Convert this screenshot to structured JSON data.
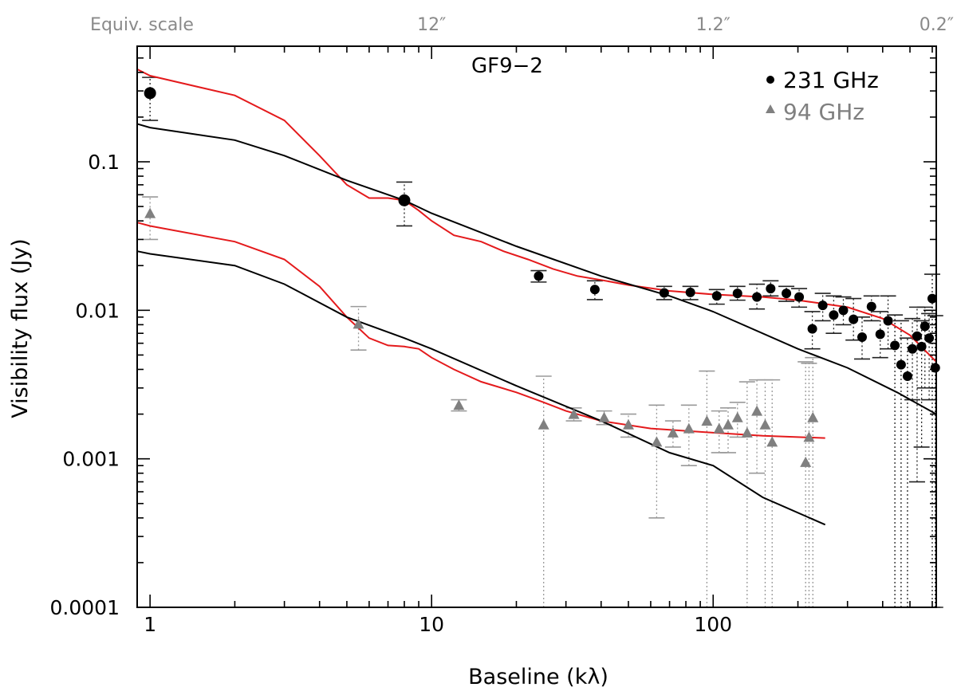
{
  "chart_data": {
    "type": "scatter",
    "title": "GF9−2",
    "xlabel": "Baseline (kλ)",
    "ylabel": "Visibility flux (Jy)",
    "x_scale": "log",
    "y_scale": "log",
    "xlim": [
      0.9,
      620
    ],
    "ylim": [
      0.0001,
      0.6
    ],
    "x_ticks": [
      {
        "value": 1,
        "label": "1"
      },
      {
        "value": 10,
        "label": "10"
      },
      {
        "value": 100,
        "label": "100"
      }
    ],
    "y_ticks": [
      {
        "value": 0.0001,
        "label": "0.0001"
      },
      {
        "value": 0.001,
        "label": "0.001"
      },
      {
        "value": 0.01,
        "label": "0.01"
      },
      {
        "value": 0.1,
        "label": "0.1"
      }
    ],
    "top_axis": {
      "title": "Equiv. scale",
      "ticks": [
        {
          "value": 10,
          "label": "12″"
        },
        {
          "value": 100,
          "label": "1.2″"
        },
        {
          "value": 600,
          "label": "0.2″"
        }
      ]
    },
    "legend": {
      "position": "top-right",
      "entries": [
        {
          "name": "231 GHz",
          "marker": "circle",
          "color": "#000000"
        },
        {
          "name": "94 GHz",
          "marker": "triangle",
          "color": "#808080"
        }
      ]
    },
    "series": [
      {
        "name": "231 GHz",
        "marker": "circle",
        "color": "#000000",
        "points": [
          {
            "x": 1.0,
            "y": 0.29,
            "lo": 0.19,
            "hi": 0.37
          },
          {
            "x": 8.0,
            "y": 0.055,
            "lo": 0.037,
            "hi": 0.073
          },
          {
            "x": 24,
            "y": 0.017,
            "lo": 0.0155,
            "hi": 0.0185
          },
          {
            "x": 38,
            "y": 0.0138,
            "lo": 0.0118,
            "hi": 0.0158
          },
          {
            "x": 67,
            "y": 0.0131,
            "lo": 0.0118,
            "hi": 0.0145
          },
          {
            "x": 83,
            "y": 0.0132,
            "lo": 0.0118,
            "hi": 0.0145
          },
          {
            "x": 103,
            "y": 0.0125,
            "lo": 0.011,
            "hi": 0.0138
          },
          {
            "x": 122,
            "y": 0.013,
            "lo": 0.0117,
            "hi": 0.0145
          },
          {
            "x": 143,
            "y": 0.0123,
            "lo": 0.0102,
            "hi": 0.015
          },
          {
            "x": 160,
            "y": 0.014,
            "lo": 0.0125,
            "hi": 0.0158
          },
          {
            "x": 182,
            "y": 0.013,
            "lo": 0.0115,
            "hi": 0.0145
          },
          {
            "x": 202,
            "y": 0.0123,
            "lo": 0.0105,
            "hi": 0.014
          },
          {
            "x": 225,
            "y": 0.0075,
            "lo": 0.0055,
            "hi": 0.0098
          },
          {
            "x": 245,
            "y": 0.0108,
            "lo": 0.0085,
            "hi": 0.013
          },
          {
            "x": 268,
            "y": 0.0093,
            "lo": 0.007,
            "hi": 0.0125
          },
          {
            "x": 290,
            "y": 0.01,
            "lo": 0.008,
            "hi": 0.0123
          },
          {
            "x": 315,
            "y": 0.0087,
            "lo": 0.0063,
            "hi": 0.012
          },
          {
            "x": 338,
            "y": 0.0066,
            "lo": 0.0047,
            "hi": 0.009
          },
          {
            "x": 365,
            "y": 0.0106,
            "lo": 0.0085,
            "hi": 0.0125
          },
          {
            "x": 392,
            "y": 0.0069,
            "lo": 0.0048,
            "hi": 0.0098
          },
          {
            "x": 418,
            "y": 0.0085,
            "lo": 0.0055,
            "hi": 0.0125
          },
          {
            "x": 442,
            "y": 0.0058,
            "lo": 0.0001,
            "hi": 0.0093
          },
          {
            "x": 465,
            "y": 0.0043,
            "lo": 0.0001,
            "hi": 0.0085
          },
          {
            "x": 490,
            "y": 0.0036,
            "lo": 0.0001,
            "hi": 0.0065
          },
          {
            "x": 510,
            "y": 0.0055,
            "lo": 0.0025,
            "hi": 0.0088
          },
          {
            "x": 530,
            "y": 0.0067,
            "lo": 0.0007,
            "hi": 0.0105
          },
          {
            "x": 550,
            "y": 0.0057,
            "lo": 0.0012,
            "hi": 0.0085
          },
          {
            "x": 565,
            "y": 0.0078,
            "lo": 0.003,
            "hi": 0.0105
          },
          {
            "x": 585,
            "y": 0.0065,
            "lo": 0.0025,
            "hi": 0.0095
          },
          {
            "x": 600,
            "y": 0.012,
            "lo": 0.0001,
            "hi": 0.0175
          },
          {
            "x": 615,
            "y": 0.0041,
            "lo": 0.0001,
            "hi": 0.0092
          }
        ]
      },
      {
        "name": "94 GHz",
        "marker": "triangle",
        "color": "#808080",
        "points": [
          {
            "x": 1.0,
            "y": 0.045,
            "lo": 0.03,
            "hi": 0.058
          },
          {
            "x": 5.5,
            "y": 0.0081,
            "lo": 0.0054,
            "hi": 0.0106
          },
          {
            "x": 12.5,
            "y": 0.0023,
            "lo": 0.0021,
            "hi": 0.0025
          },
          {
            "x": 25,
            "y": 0.0017,
            "lo": 0.0001,
            "hi": 0.0036
          },
          {
            "x": 32,
            "y": 0.002,
            "lo": 0.0018,
            "hi": 0.0022
          },
          {
            "x": 41,
            "y": 0.0019,
            "lo": 0.0017,
            "hi": 0.0021
          },
          {
            "x": 50,
            "y": 0.0017,
            "lo": 0.0014,
            "hi": 0.002
          },
          {
            "x": 63,
            "y": 0.0013,
            "lo": 0.0004,
            "hi": 0.0023
          },
          {
            "x": 72,
            "y": 0.0015,
            "lo": 0.0012,
            "hi": 0.0018
          },
          {
            "x": 82,
            "y": 0.0016,
            "lo": 0.0009,
            "hi": 0.0023
          },
          {
            "x": 95,
            "y": 0.0018,
            "lo": 0.0001,
            "hi": 0.0039
          },
          {
            "x": 105,
            "y": 0.0016,
            "lo": 0.0011,
            "hi": 0.0021
          },
          {
            "x": 113,
            "y": 0.0017,
            "lo": 0.0011,
            "hi": 0.0022
          },
          {
            "x": 122,
            "y": 0.0019,
            "lo": 0.0014,
            "hi": 0.0024
          },
          {
            "x": 132,
            "y": 0.0015,
            "lo": 0.0001,
            "hi": 0.0033
          },
          {
            "x": 143,
            "y": 0.0021,
            "lo": 0.0008,
            "hi": 0.0034
          },
          {
            "x": 153,
            "y": 0.0017,
            "lo": 0.0001,
            "hi": 0.0034
          },
          {
            "x": 162,
            "y": 0.0013,
            "lo": 0.0001,
            "hi": 0.0034
          },
          {
            "x": 213,
            "y": 0.00095,
            "lo": 0.0001,
            "hi": 0.0045
          },
          {
            "x": 219,
            "y": 0.0014,
            "lo": 0.0001,
            "hi": 0.0044
          },
          {
            "x": 226,
            "y": 0.0019,
            "lo": 0.0001,
            "hi": 0.0048
          }
        ]
      }
    ],
    "models": [
      {
        "name": "231 GHz model (red)",
        "color": "#e41a1c",
        "points": [
          [
            0.9,
            0.42
          ],
          [
            1,
            0.38
          ],
          [
            2,
            0.28
          ],
          [
            3,
            0.19
          ],
          [
            4,
            0.11
          ],
          [
            5,
            0.07
          ],
          [
            6,
            0.057
          ],
          [
            7,
            0.057
          ],
          [
            8,
            0.055
          ],
          [
            9,
            0.047
          ],
          [
            10,
            0.04
          ],
          [
            12,
            0.032
          ],
          [
            15,
            0.029
          ],
          [
            18,
            0.025
          ],
          [
            22,
            0.022
          ],
          [
            27,
            0.019
          ],
          [
            33,
            0.017
          ],
          [
            40,
            0.016
          ],
          [
            50,
            0.0148
          ],
          [
            70,
            0.0135
          ],
          [
            100,
            0.0128
          ],
          [
            150,
            0.0123
          ],
          [
            200,
            0.0117
          ],
          [
            300,
            0.0105
          ],
          [
            400,
            0.0088
          ],
          [
            500,
            0.0068
          ],
          [
            620,
            0.0045
          ]
        ]
      },
      {
        "name": "231 GHz model (black)",
        "color": "#000000",
        "points": [
          [
            0.9,
            0.18
          ],
          [
            1,
            0.17
          ],
          [
            2,
            0.14
          ],
          [
            3,
            0.11
          ],
          [
            5,
            0.075
          ],
          [
            8,
            0.055
          ],
          [
            10,
            0.045
          ],
          [
            20,
            0.027
          ],
          [
            40,
            0.017
          ],
          [
            70,
            0.0125
          ],
          [
            100,
            0.0098
          ],
          [
            200,
            0.0055
          ],
          [
            300,
            0.0041
          ],
          [
            450,
            0.0028
          ],
          [
            620,
            0.002
          ]
        ]
      },
      {
        "name": "94 GHz model (red)",
        "color": "#e41a1c",
        "points": [
          [
            0.9,
            0.039
          ],
          [
            1,
            0.037
          ],
          [
            2,
            0.029
          ],
          [
            3,
            0.022
          ],
          [
            4,
            0.0145
          ],
          [
            5,
            0.009
          ],
          [
            6,
            0.0065
          ],
          [
            7,
            0.0058
          ],
          [
            8,
            0.0057
          ],
          [
            9,
            0.0055
          ],
          [
            10,
            0.0048
          ],
          [
            12,
            0.004
          ],
          [
            15,
            0.0033
          ],
          [
            20,
            0.0028
          ],
          [
            25,
            0.0024
          ],
          [
            30,
            0.0021
          ],
          [
            40,
            0.0018
          ],
          [
            60,
            0.0016
          ],
          [
            100,
            0.0015
          ],
          [
            150,
            0.00143
          ],
          [
            250,
            0.00138
          ]
        ]
      },
      {
        "name": "94 GHz model (black)",
        "color": "#000000",
        "points": [
          [
            0.9,
            0.025
          ],
          [
            1,
            0.024
          ],
          [
            2,
            0.02
          ],
          [
            3,
            0.015
          ],
          [
            5,
            0.009
          ],
          [
            8,
            0.0065
          ],
          [
            10,
            0.0055
          ],
          [
            20,
            0.0031
          ],
          [
            40,
            0.0018
          ],
          [
            70,
            0.0011
          ],
          [
            100,
            0.0009
          ],
          [
            150,
            0.00055
          ],
          [
            250,
            0.00036
          ]
        ]
      }
    ]
  }
}
